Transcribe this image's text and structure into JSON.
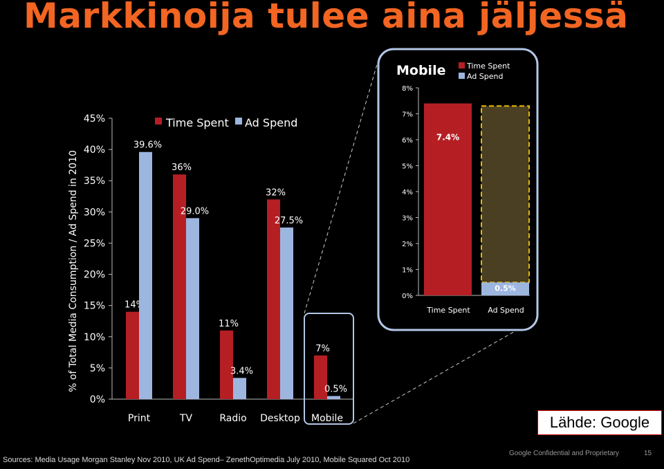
{
  "slide": {
    "title": "Markkinoija tulee aina jäljessä",
    "source_label": "Lähde: Google",
    "footnote": "Sources: Media Usage Morgan Stanley Nov 2010, UK Ad Spend– ZenethOptimedia July 2010, Mobile Squared Oct 2010",
    "confidential": "Google Confidential and Proprietary",
    "page_number": "15"
  },
  "colors": {
    "time_spent": "#b51f24",
    "ad_spend": "#9db6e0",
    "highlight_border": "#b4c7e7",
    "gap_fill": "#4a3f22",
    "gap_border": "#e8b800",
    "title": "#f26522"
  },
  "chart_data": [
    {
      "type": "bar",
      "categories": [
        "Print",
        "TV",
        "Radio",
        "Desktop",
        "Mobile"
      ],
      "series": [
        {
          "name": "Time Spent",
          "values": [
            14,
            36,
            11,
            32,
            7
          ],
          "labels": [
            "14%",
            "36%",
            "11%",
            "32%",
            "7%"
          ]
        },
        {
          "name": "Ad Spend",
          "values": [
            39.6,
            29.0,
            3.4,
            27.5,
            0.5
          ],
          "labels": [
            "39.6%",
            "29.0%",
            "3.4%",
            "27.5%",
            "0.5%"
          ]
        }
      ],
      "ylabel": "% of Total Media Consumption / Ad Spend in 2010",
      "ylim": [
        0,
        45
      ],
      "yticks": [
        "0%",
        "5%",
        "10%",
        "15%",
        "20%",
        "25%",
        "30%",
        "35%",
        "40%",
        "45%"
      ],
      "legend": "top",
      "highlight_category": "Mobile"
    },
    {
      "type": "bar",
      "title": "Mobile",
      "categories": [
        "Time Spent",
        "Ad Spend"
      ],
      "values": [
        7.4,
        0.5
      ],
      "labels": [
        "7.4%",
        "0.5%"
      ],
      "series_names": [
        "Time Spent",
        "Ad Spend"
      ],
      "ylim": [
        0,
        8
      ],
      "yticks": [
        "0%",
        "1%",
        "2%",
        "3%",
        "4%",
        "5%",
        "6%",
        "7%",
        "8%"
      ],
      "gap_to": 7.3,
      "legend": "top-right"
    }
  ]
}
